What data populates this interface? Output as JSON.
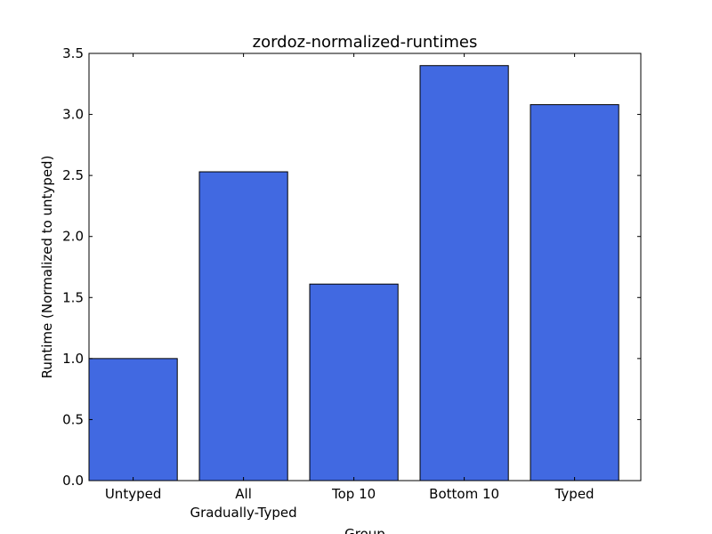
{
  "chart_data": {
    "type": "bar",
    "title": "zordoz-normalized-runtimes",
    "xlabel": "Group",
    "ylabel": "Runtime (Normalized to untyped)",
    "categories": [
      [
        "Untyped"
      ],
      [
        "All",
        "Gradually-Typed"
      ],
      [
        "Top 10"
      ],
      [
        "Bottom 10"
      ],
      [
        "Typed"
      ]
    ],
    "values": [
      1.0,
      2.53,
      1.61,
      3.4,
      3.08
    ],
    "ylim": [
      0,
      3.5
    ],
    "yticks": [
      "0.0",
      "0.5",
      "1.0",
      "1.5",
      "2.0",
      "2.5",
      "3.0",
      "3.5"
    ],
    "bar_color": "#4169e1",
    "grid": false,
    "legend": "none"
  }
}
